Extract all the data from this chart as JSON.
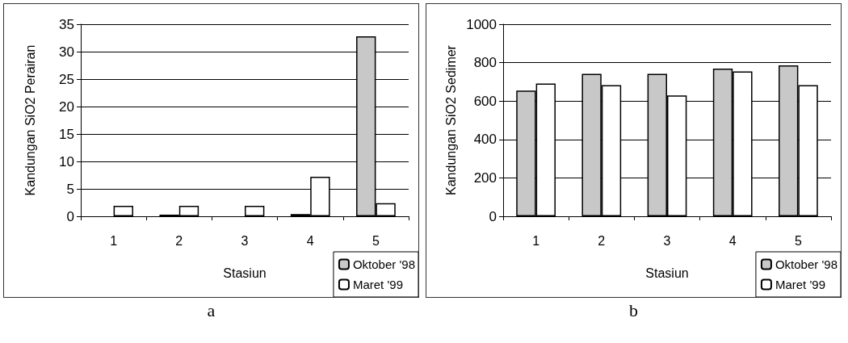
{
  "chart_data": [
    {
      "type": "bar",
      "categories": [
        "1",
        "2",
        "3",
        "4",
        "5"
      ],
      "xlabel": "Stasiun",
      "ylabel": "Kandungan SiO2 Perairan",
      "series": [
        {
          "name": "Oktober '98",
          "color": "#c8c8c8",
          "values": [
            null,
            0.3,
            null,
            0.4,
            32.8
          ]
        },
        {
          "name": "Maret '99",
          "color": "#ffffff",
          "values": [
            1.9,
            1.9,
            1.9,
            7.2,
            2.4
          ]
        }
      ],
      "ylim": [
        0,
        35
      ],
      "yticks": [
        0,
        5,
        10,
        15,
        20,
        25,
        30,
        35
      ],
      "grid": "y",
      "legend": "bottom right",
      "annotations": [
        "a"
      ]
    },
    {
      "type": "bar",
      "categories": [
        "1",
        "2",
        "3",
        "4",
        "5"
      ],
      "xlabel": "Stasiun",
      "ylabel": "Kandungan SiO2 Sedimer",
      "series": [
        {
          "name": "Oktober '98",
          "color": "#c8c8c8",
          "values": [
            654,
            742,
            742,
            769,
            786
          ]
        },
        {
          "name": "Maret '99",
          "color": "#ffffff",
          "values": [
            691,
            683,
            629,
            754,
            683
          ]
        }
      ],
      "ylim": [
        0,
        1000
      ],
      "yticks": [
        0,
        200,
        400,
        600,
        800,
        1000
      ],
      "grid": "y",
      "legend": "bottom right",
      "annotations": [
        "b"
      ]
    }
  ]
}
